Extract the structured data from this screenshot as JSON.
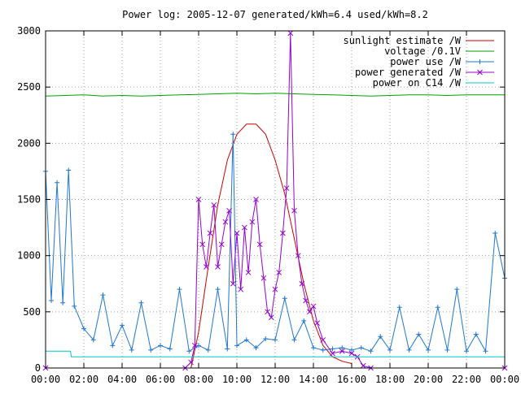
{
  "chart_data": {
    "type": "line",
    "title": "Power log: 2005-12-07 generated/kWh=6.4 used/kWh=8.2",
    "xlabel": "",
    "ylabel": "",
    "xlim": [
      0,
      24
    ],
    "ylim": [
      0,
      3000
    ],
    "grid": true,
    "legend_position": "top-right",
    "x_ticks": [
      "00:00",
      "02:00",
      "04:00",
      "06:00",
      "08:00",
      "10:00",
      "12:00",
      "14:00",
      "16:00",
      "18:00",
      "20:00",
      "22:00",
      "00:00"
    ],
    "y_ticks": [
      0,
      500,
      1000,
      1500,
      2000,
      2500,
      3000
    ],
    "series": [
      {
        "name": "sunlight estimate /W",
        "color": "#cc0000",
        "marker": "none",
        "x": [
          7.6,
          8.0,
          8.5,
          9.0,
          9.5,
          10.0,
          10.5,
          11.0,
          11.5,
          12.0,
          12.5,
          13.0,
          13.5,
          14.0,
          14.5,
          15.0,
          15.5,
          16.0
        ],
        "y": [
          0,
          320,
          900,
          1450,
          1850,
          2080,
          2170,
          2170,
          2080,
          1850,
          1550,
          1150,
          750,
          420,
          200,
          100,
          60,
          40
        ]
      },
      {
        "name": "voltage /0.1V",
        "color": "#00a000",
        "marker": "none",
        "x": [
          0,
          1,
          2,
          3,
          4,
          5,
          6,
          7,
          8,
          9,
          10,
          11,
          12,
          13,
          14,
          15,
          16,
          17,
          18,
          19,
          20,
          21,
          22,
          23,
          24
        ],
        "y": [
          2420,
          2425,
          2430,
          2420,
          2425,
          2420,
          2425,
          2430,
          2435,
          2440,
          2445,
          2440,
          2445,
          2440,
          2435,
          2430,
          2425,
          2420,
          2425,
          2430,
          2430,
          2425,
          2430,
          2430,
          2430
        ]
      },
      {
        "name": "power use /W",
        "color": "#1f77d0",
        "marker": "+",
        "x": [
          0.0,
          0.3,
          0.6,
          0.9,
          1.2,
          1.5,
          2.0,
          2.5,
          3.0,
          3.5,
          4.0,
          4.5,
          5.0,
          5.5,
          6.0,
          6.5,
          7.0,
          7.5,
          8.0,
          8.5,
          9.0,
          9.5,
          9.8,
          10.0,
          10.5,
          11.0,
          11.5,
          12.0,
          12.5,
          13.0,
          13.5,
          14.0,
          14.5,
          15.0,
          15.5,
          16.0,
          16.5,
          17.0,
          17.5,
          18.0,
          18.5,
          19.0,
          19.5,
          20.0,
          20.5,
          21.0,
          21.5,
          22.0,
          22.5,
          23.0,
          23.5,
          24.0
        ],
        "y": [
          1750,
          600,
          1650,
          580,
          1760,
          550,
          350,
          250,
          650,
          200,
          380,
          160,
          580,
          160,
          200,
          170,
          700,
          150,
          200,
          160,
          700,
          170,
          2080,
          200,
          250,
          180,
          260,
          250,
          620,
          250,
          420,
          180,
          160,
          170,
          180,
          160,
          180,
          150,
          280,
          160,
          540,
          160,
          300,
          160,
          540,
          160,
          700,
          150,
          300,
          150,
          1200,
          800
        ]
      },
      {
        "name": "power generated /W",
        "color": "#9400d3",
        "marker": "x",
        "x": [
          0,
          7.3,
          7.6,
          7.8,
          8.0,
          8.2,
          8.4,
          8.6,
          8.8,
          9.0,
          9.2,
          9.4,
          9.6,
          9.8,
          10.0,
          10.2,
          10.4,
          10.6,
          10.8,
          11.0,
          11.2,
          11.4,
          11.6,
          11.8,
          12.0,
          12.2,
          12.4,
          12.6,
          12.8,
          13.0,
          13.2,
          13.4,
          13.6,
          13.8,
          14.0,
          14.2,
          14.5,
          15.0,
          15.5,
          16.0,
          16.3,
          16.6,
          17.0,
          24.0
        ],
        "y": [
          0,
          0,
          50,
          200,
          1500,
          1100,
          900,
          1200,
          1450,
          900,
          1100,
          1300,
          1400,
          750,
          1200,
          700,
          1250,
          850,
          1300,
          1500,
          1100,
          800,
          500,
          450,
          700,
          850,
          1200,
          1600,
          2980,
          1400,
          1000,
          750,
          600,
          500,
          550,
          400,
          250,
          130,
          150,
          130,
          100,
          20,
          0,
          0
        ]
      },
      {
        "name": "power on C14 /W",
        "color": "#00c8c8",
        "marker": "none",
        "x": [
          0.0,
          1.3,
          1.35,
          24.0
        ],
        "y": [
          150,
          150,
          100,
          100
        ]
      }
    ]
  }
}
